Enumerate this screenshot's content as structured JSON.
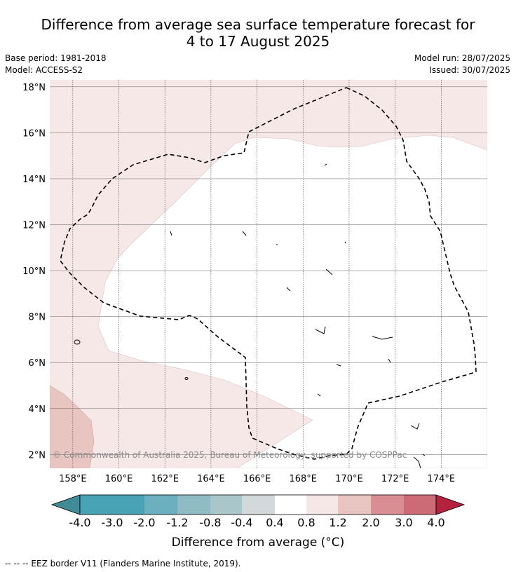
{
  "title": {
    "line1": "Difference from average sea surface temperature forecast for",
    "line2": "4 to 17 August 2025"
  },
  "meta": {
    "base_period": "Base period: 1981-2018",
    "model": "Model: ACCESS-S2",
    "model_run": "Model run: 28/07/2025",
    "issued": "Issued: 30/07/2025"
  },
  "map": {
    "lon_range": [
      157,
      176
    ],
    "lat_range": [
      1.4,
      18.3
    ],
    "lon_ticks": [
      "158°E",
      "160°E",
      "162°E",
      "164°E",
      "166°E",
      "168°E",
      "170°E",
      "172°E",
      "174°E"
    ],
    "lat_ticks": [
      "2°N",
      "4°N",
      "6°N",
      "8°N",
      "10°N",
      "12°N",
      "14°N",
      "16°N",
      "18°N"
    ],
    "copyright": "© Commonwealth of Australia 2025, Bureau of Meteorology, supported by COSPPac",
    "colors": {
      "band_0_4_to_0_8": "#f5e8e7",
      "band_0_8_to_1_2": "#e8c5c1",
      "neutral": "#ffffff"
    }
  },
  "colorbar": {
    "labels": [
      "-4.0",
      "-3.0",
      "-2.0",
      "-1.2",
      "-0.8",
      "-0.4",
      "0.4",
      "0.8",
      "1.2",
      "2.0",
      "3.0",
      "4.0"
    ],
    "colors": [
      "#3f8c98",
      "#48a3b4",
      "#6cb0bf",
      "#8fbbc5",
      "#a9c7cb",
      "#d3d9db",
      "#ffffff",
      "#f5e8e7",
      "#e8c5c1",
      "#d98e96",
      "#cc6a76",
      "#c24656",
      "#b5223e"
    ],
    "title": "Difference from average (°C)"
  },
  "footer": "--  --  -- EEZ border V11 (Flanders Marine Institute, 2019)."
}
